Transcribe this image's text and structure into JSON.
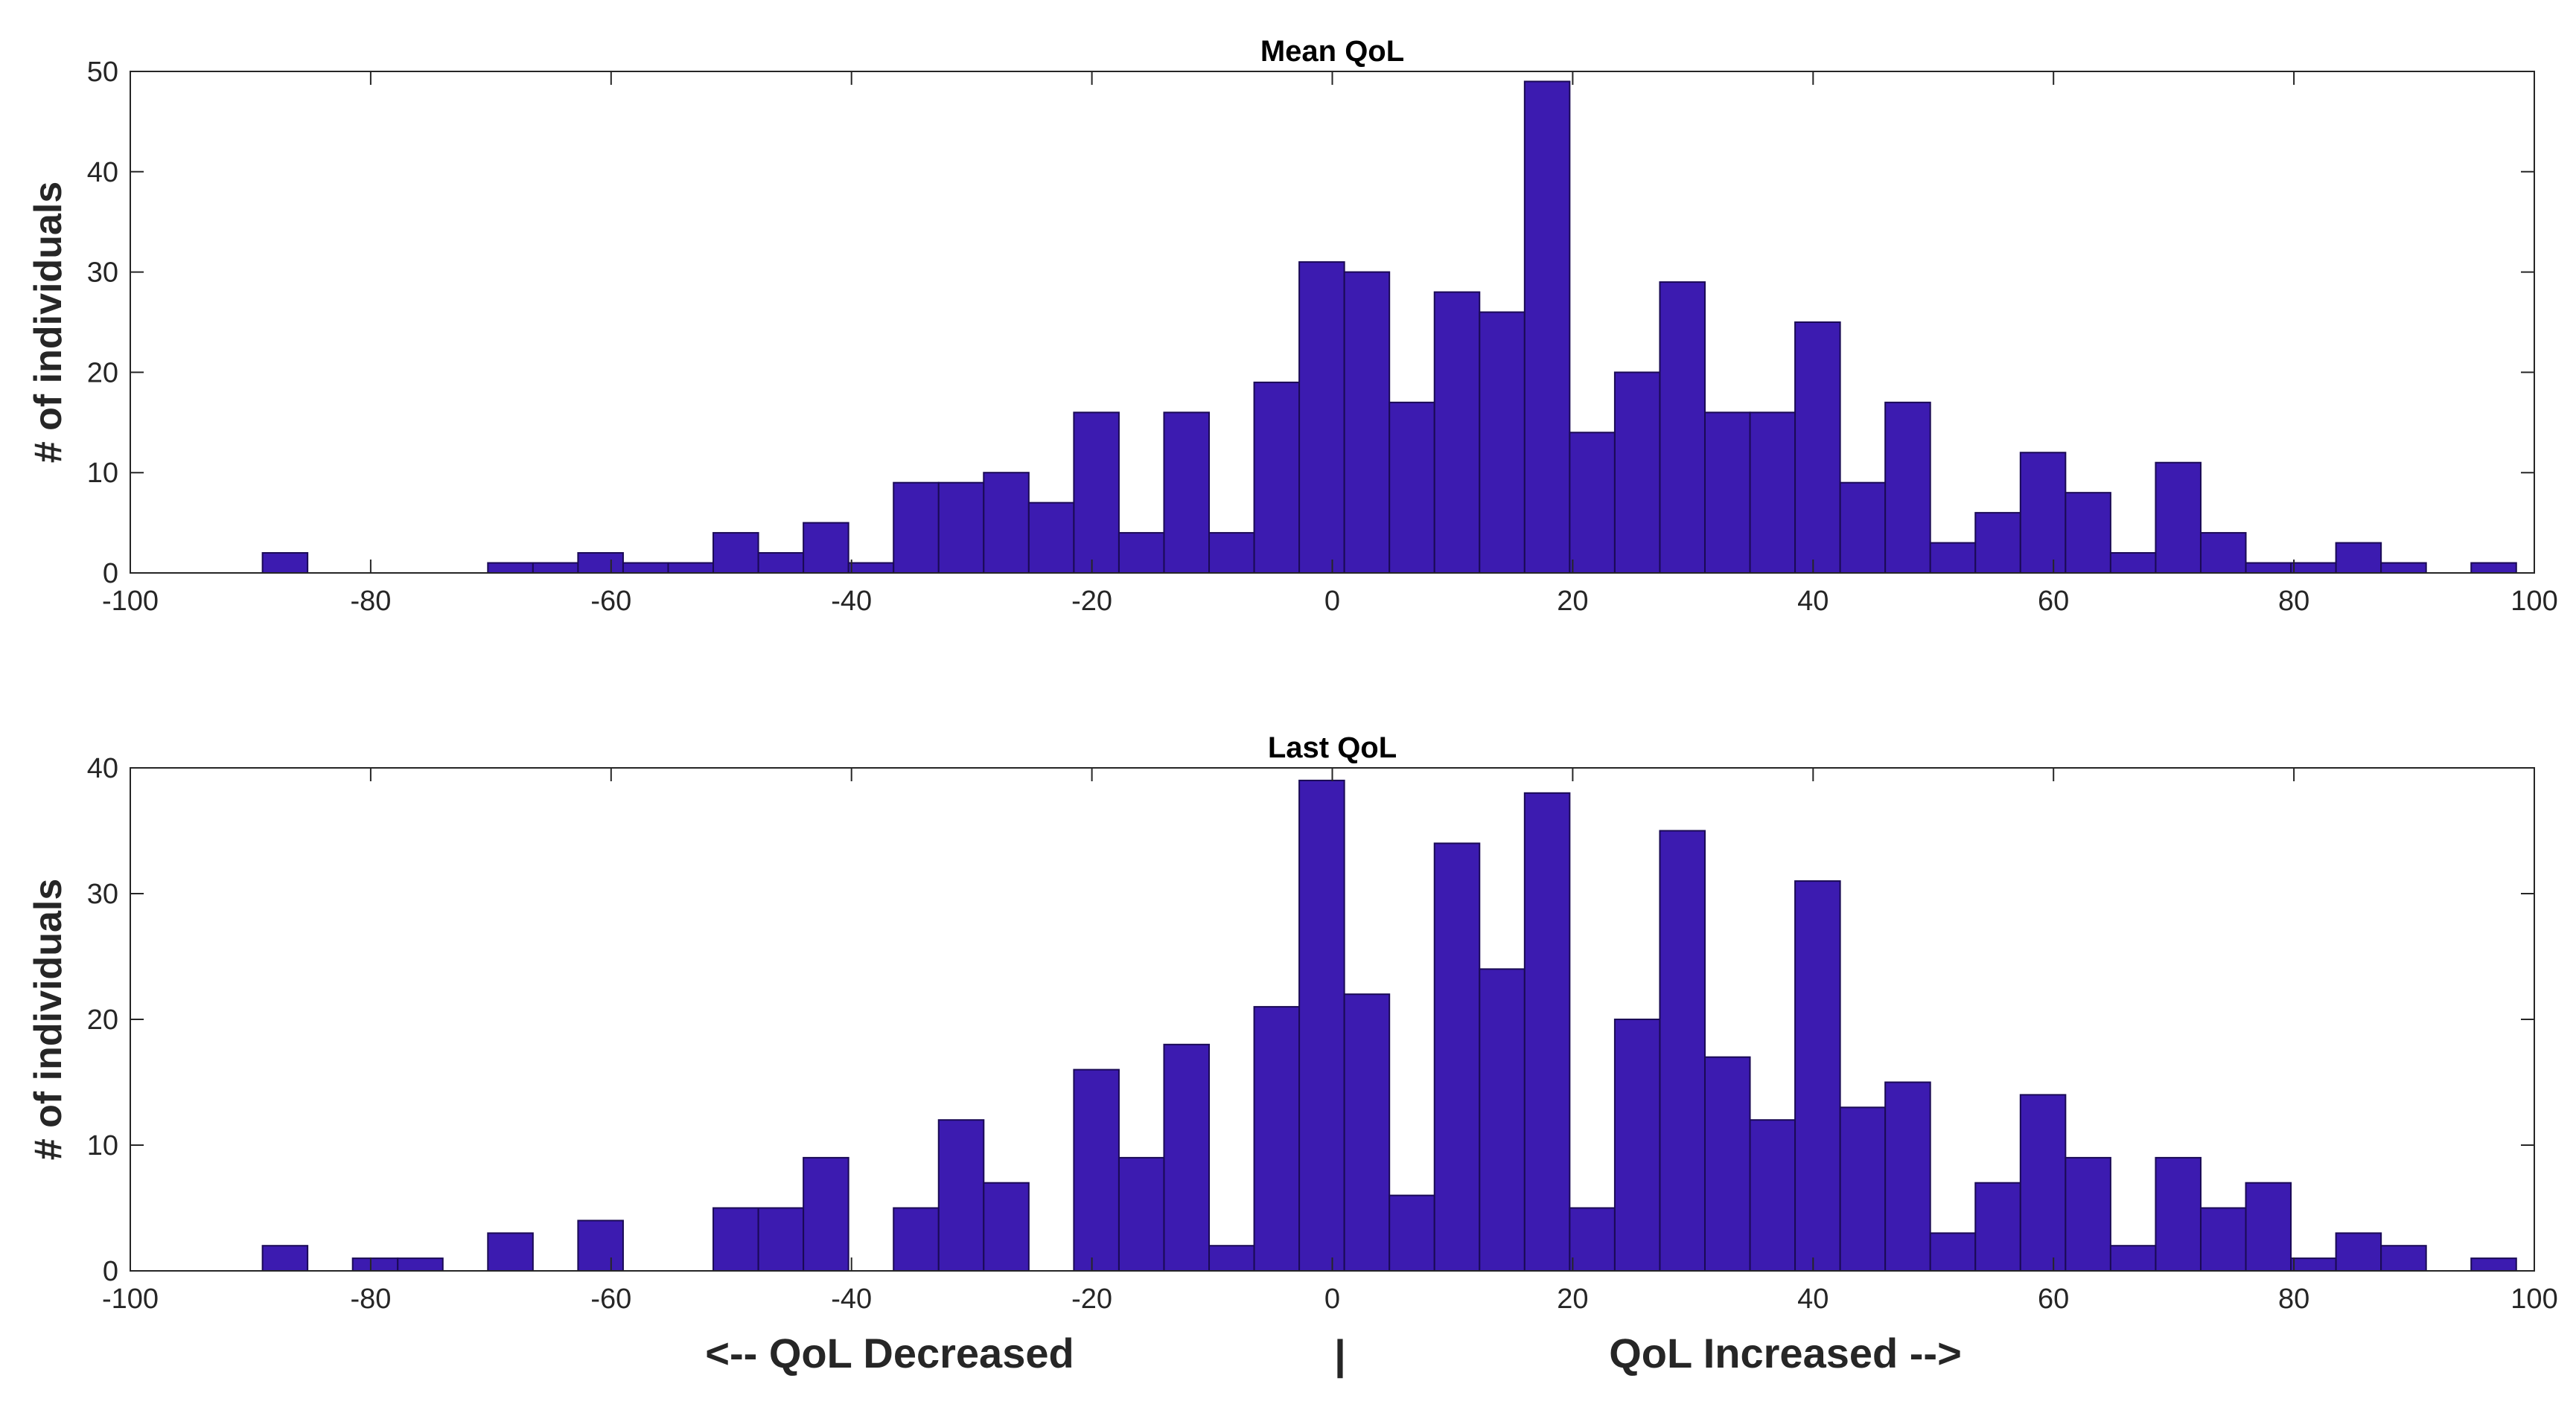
{
  "colors": {
    "bar_fill": "#3c1bb0",
    "bar_edge": "#1a0a55",
    "axis": "#262626",
    "background": "#ffffff"
  },
  "footer": {
    "left_label": "<-- QoL Decreased",
    "center_mark": "|",
    "right_label": "QoL Increased -->"
  },
  "chart_data": [
    {
      "type": "bar",
      "title": "Mean QoL",
      "xlabel": "",
      "ylabel": "# of individuals",
      "xlim": [
        -100,
        100
      ],
      "ylim": [
        0,
        50
      ],
      "xticks": [
        -100,
        -80,
        -60,
        -40,
        -20,
        0,
        20,
        40,
        60,
        80,
        100
      ],
      "yticks": [
        0,
        10,
        20,
        30,
        40,
        50
      ],
      "bin_width": 3.75,
      "grid": false,
      "bins": [
        {
          "x0": -89.0,
          "value": 2
        },
        {
          "x0": -85.25,
          "value": 0
        },
        {
          "x0": -81.5,
          "value": 0
        },
        {
          "x0": -77.75,
          "value": 0
        },
        {
          "x0": -74.0,
          "value": 0
        },
        {
          "x0": -70.25,
          "value": 1
        },
        {
          "x0": -66.5,
          "value": 1
        },
        {
          "x0": -62.75,
          "value": 2
        },
        {
          "x0": -59.0,
          "value": 1
        },
        {
          "x0": -55.25,
          "value": 1
        },
        {
          "x0": -51.5,
          "value": 4
        },
        {
          "x0": -47.75,
          "value": 2
        },
        {
          "x0": -44.0,
          "value": 5
        },
        {
          "x0": -40.25,
          "value": 1
        },
        {
          "x0": -36.5,
          "value": 9
        },
        {
          "x0": -32.75,
          "value": 9
        },
        {
          "x0": -29.0,
          "value": 10
        },
        {
          "x0": -25.25,
          "value": 7
        },
        {
          "x0": -21.5,
          "value": 16
        },
        {
          "x0": -17.75,
          "value": 4
        },
        {
          "x0": -14.0,
          "value": 16
        },
        {
          "x0": -10.25,
          "value": 4
        },
        {
          "x0": -6.5,
          "value": 19
        },
        {
          "x0": -2.75,
          "value": 31
        },
        {
          "x0": 1.0,
          "value": 30
        },
        {
          "x0": 4.75,
          "value": 17
        },
        {
          "x0": 8.5,
          "value": 28
        },
        {
          "x0": 12.25,
          "value": 26
        },
        {
          "x0": 16.0,
          "value": 49
        },
        {
          "x0": 19.75,
          "value": 14
        },
        {
          "x0": 23.5,
          "value": 20
        },
        {
          "x0": 27.25,
          "value": 29
        },
        {
          "x0": 31.0,
          "value": 16
        },
        {
          "x0": 34.75,
          "value": 16
        },
        {
          "x0": 38.5,
          "value": 25
        },
        {
          "x0": 42.25,
          "value": 9
        },
        {
          "x0": 46.0,
          "value": 17
        },
        {
          "x0": 49.75,
          "value": 3
        },
        {
          "x0": 53.5,
          "value": 6
        },
        {
          "x0": 57.25,
          "value": 12
        },
        {
          "x0": 61.0,
          "value": 8
        },
        {
          "x0": 64.75,
          "value": 2
        },
        {
          "x0": 68.5,
          "value": 11
        },
        {
          "x0": 72.25,
          "value": 4
        },
        {
          "x0": 76.0,
          "value": 1
        },
        {
          "x0": 79.75,
          "value": 1
        },
        {
          "x0": 83.5,
          "value": 3
        },
        {
          "x0": 87.25,
          "value": 1
        },
        {
          "x0": 91.0,
          "value": 0
        },
        {
          "x0": 94.75,
          "value": 1
        }
      ]
    },
    {
      "type": "bar",
      "title": "Last QoL",
      "xlabel": "",
      "ylabel": "# of individuals",
      "xlim": [
        -100,
        100
      ],
      "ylim": [
        0,
        40
      ],
      "xticks": [
        -100,
        -80,
        -60,
        -40,
        -20,
        0,
        20,
        40,
        60,
        80,
        100
      ],
      "yticks": [
        0,
        10,
        20,
        30,
        40
      ],
      "bin_width": 3.75,
      "grid": false,
      "bins": [
        {
          "x0": -89.0,
          "value": 2
        },
        {
          "x0": -85.25,
          "value": 0
        },
        {
          "x0": -81.5,
          "value": 1
        },
        {
          "x0": -77.75,
          "value": 1
        },
        {
          "x0": -74.0,
          "value": 0
        },
        {
          "x0": -70.25,
          "value": 3
        },
        {
          "x0": -66.5,
          "value": 0
        },
        {
          "x0": -62.75,
          "value": 4
        },
        {
          "x0": -59.0,
          "value": 0
        },
        {
          "x0": -55.25,
          "value": 0
        },
        {
          "x0": -51.5,
          "value": 5
        },
        {
          "x0": -47.75,
          "value": 5
        },
        {
          "x0": -44.0,
          "value": 9
        },
        {
          "x0": -40.25,
          "value": 0
        },
        {
          "x0": -36.5,
          "value": 5
        },
        {
          "x0": -32.75,
          "value": 12
        },
        {
          "x0": -29.0,
          "value": 7
        },
        {
          "x0": -25.25,
          "value": 0
        },
        {
          "x0": -21.5,
          "value": 16
        },
        {
          "x0": -17.75,
          "value": 9
        },
        {
          "x0": -14.0,
          "value": 18
        },
        {
          "x0": -10.25,
          "value": 2
        },
        {
          "x0": -6.5,
          "value": 21
        },
        {
          "x0": -2.75,
          "value": 39
        },
        {
          "x0": 1.0,
          "value": 22
        },
        {
          "x0": 4.75,
          "value": 6
        },
        {
          "x0": 8.5,
          "value": 34
        },
        {
          "x0": 12.25,
          "value": 24
        },
        {
          "x0": 16.0,
          "value": 38
        },
        {
          "x0": 19.75,
          "value": 5
        },
        {
          "x0": 23.5,
          "value": 20
        },
        {
          "x0": 27.25,
          "value": 35
        },
        {
          "x0": 31.0,
          "value": 17
        },
        {
          "x0": 34.75,
          "value": 12
        },
        {
          "x0": 38.5,
          "value": 31
        },
        {
          "x0": 42.25,
          "value": 13
        },
        {
          "x0": 46.0,
          "value": 15
        },
        {
          "x0": 49.75,
          "value": 3
        },
        {
          "x0": 53.5,
          "value": 7
        },
        {
          "x0": 57.25,
          "value": 14
        },
        {
          "x0": 61.0,
          "value": 9
        },
        {
          "x0": 64.75,
          "value": 2
        },
        {
          "x0": 68.5,
          "value": 9
        },
        {
          "x0": 72.25,
          "value": 5
        },
        {
          "x0": 76.0,
          "value": 7
        },
        {
          "x0": 79.75,
          "value": 1
        },
        {
          "x0": 83.5,
          "value": 3
        },
        {
          "x0": 87.25,
          "value": 2
        },
        {
          "x0": 91.0,
          "value": 0
        },
        {
          "x0": 94.75,
          "value": 1
        }
      ]
    }
  ]
}
